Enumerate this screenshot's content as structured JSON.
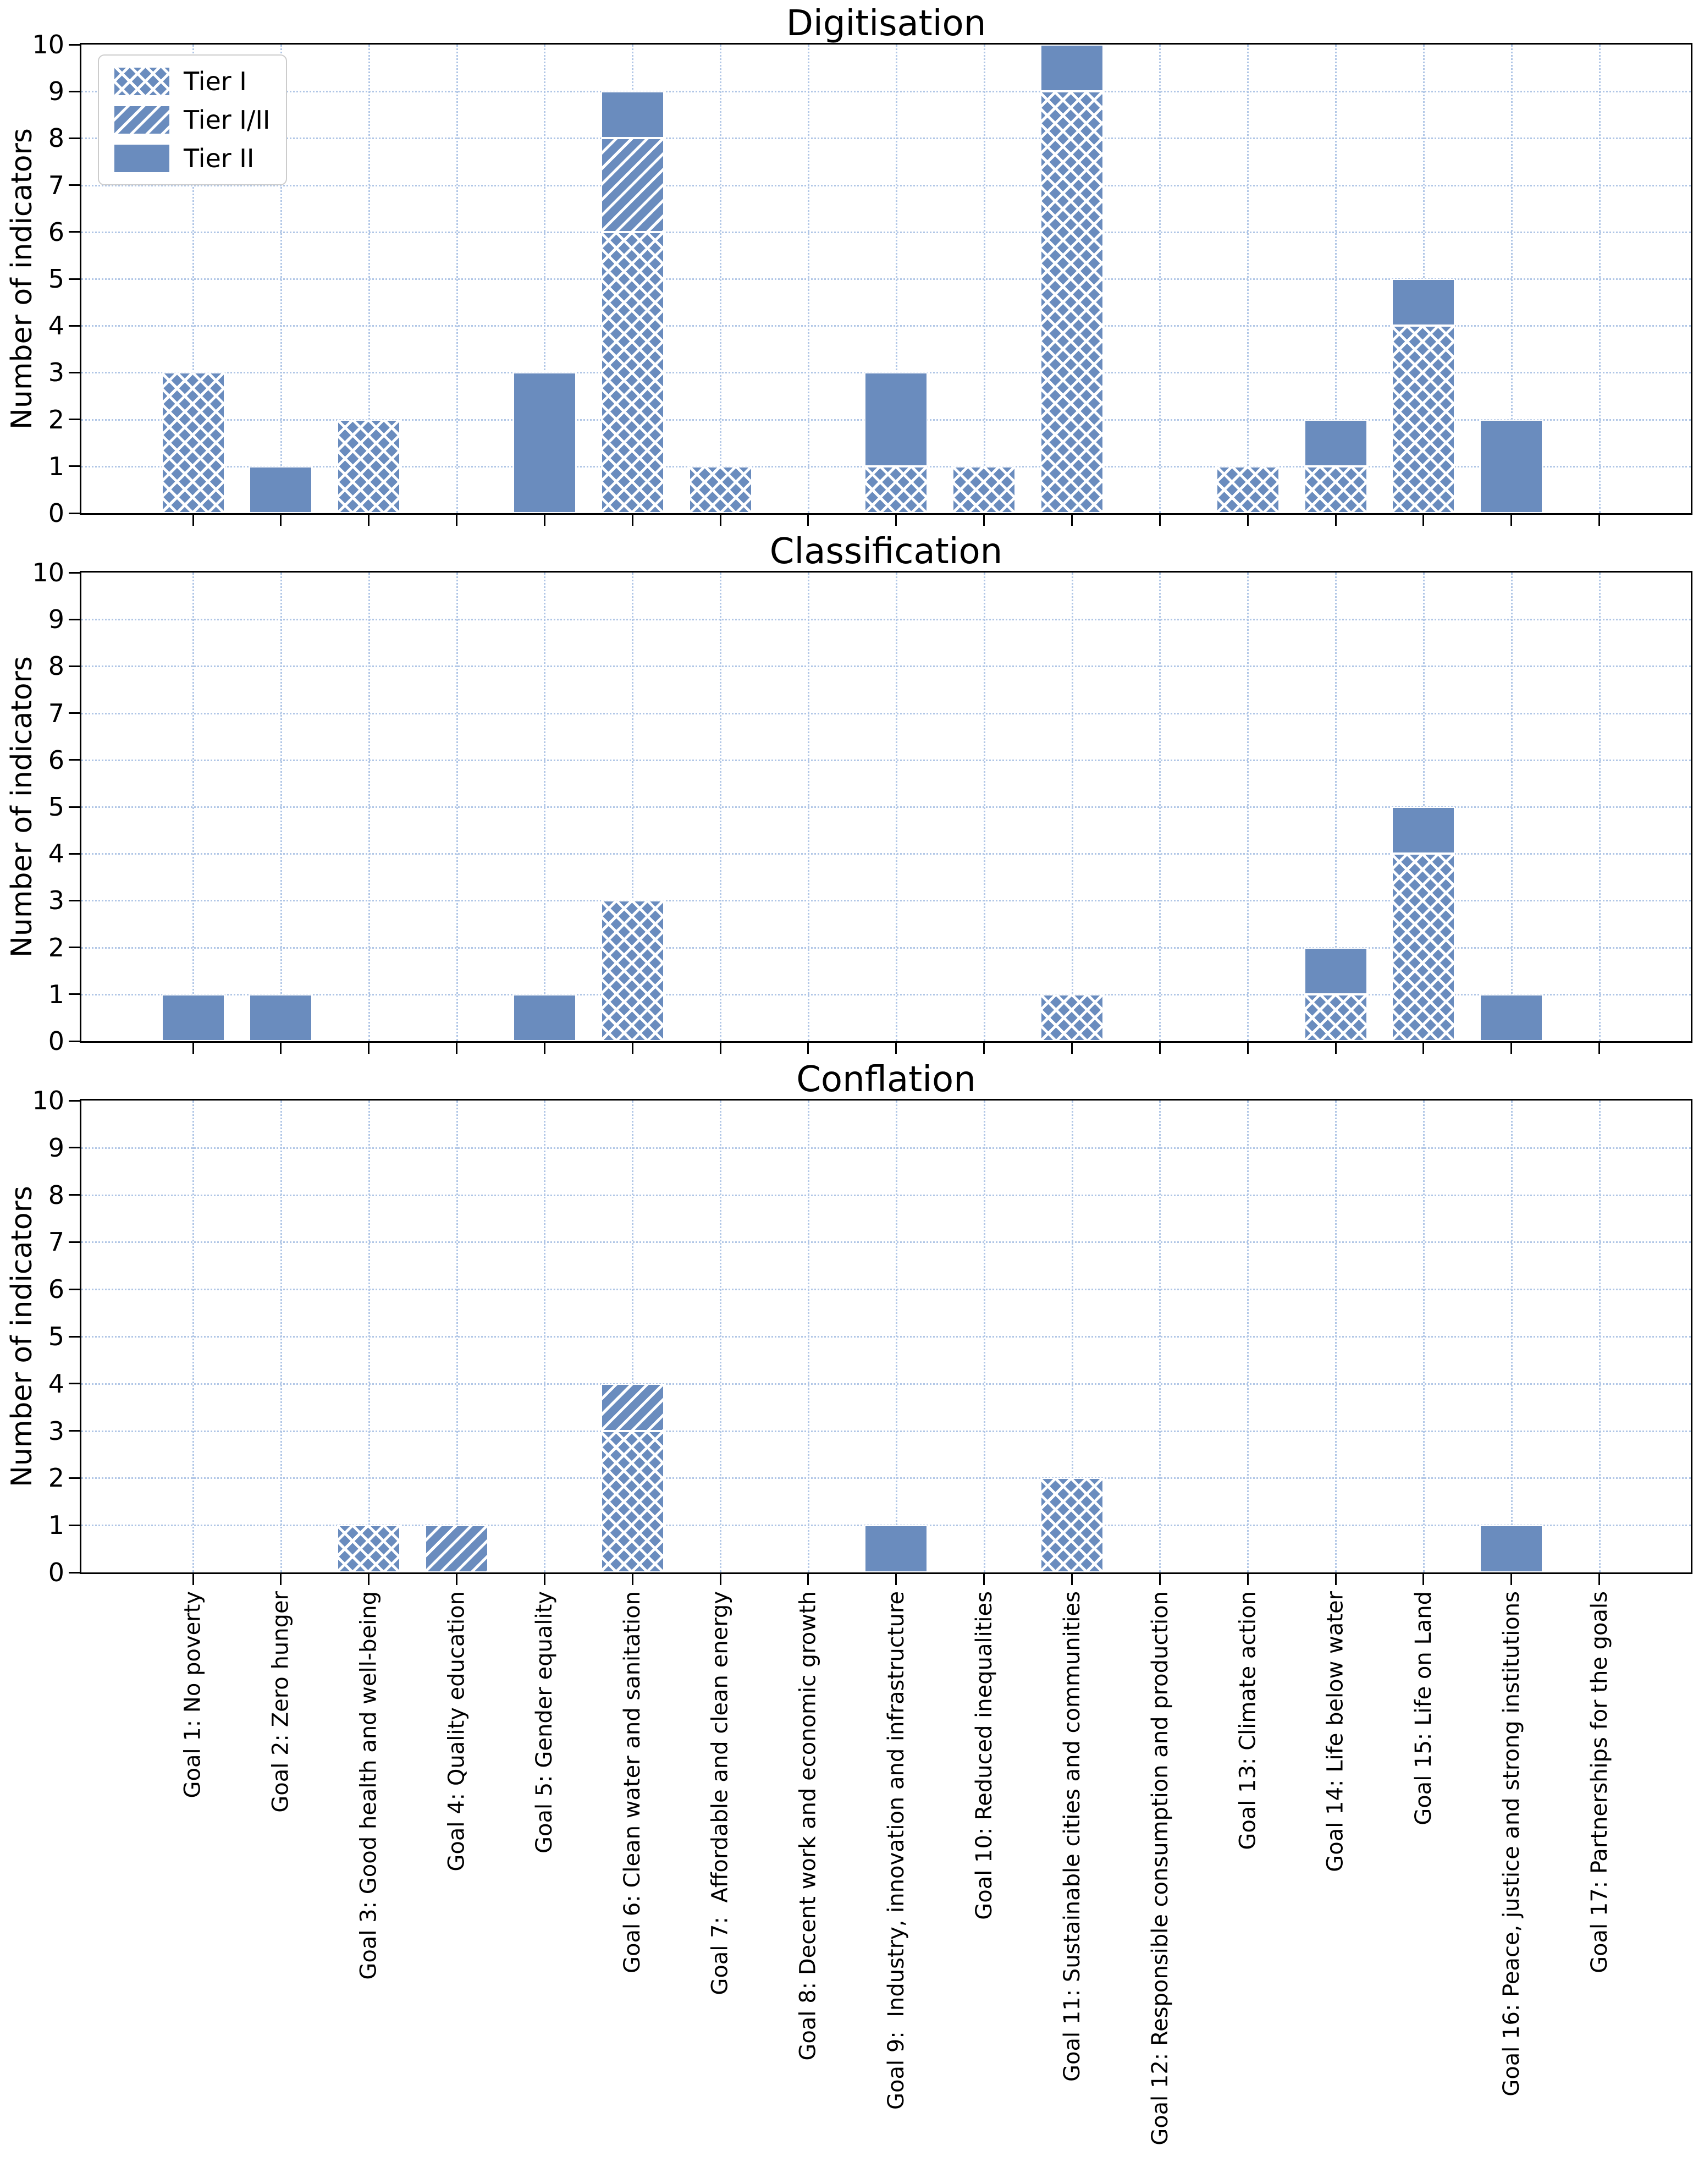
{
  "ylabel": "Number of indicators",
  "y_ticks": [
    0,
    1,
    2,
    3,
    4,
    5,
    6,
    7,
    8,
    9,
    10
  ],
  "colors": {
    "bar": "#6a8cbe",
    "hatch_lines": "#ffffff",
    "grid": "#b0c6e6",
    "spine": "#000000",
    "text": "#000000",
    "legend_border": "#cccccc",
    "legend_background": "#ffffff"
  },
  "legend": {
    "position": "upper-left",
    "items": [
      {
        "label": "Tier I",
        "hatch": "cross"
      },
      {
        "label": "Tier I/II",
        "hatch": "diag"
      },
      {
        "label": "Tier II",
        "hatch": "solid"
      }
    ]
  },
  "categories": [
    "Goal 1: No poverty",
    "Goal 2: Zero hunger",
    "Goal 3: Good health and well-being",
    "Goal 4: Quality education",
    "Goal 5: Gender equality",
    "Goal 6: Clean water and sanitation",
    "Goal 7:  Affordable and clean energy",
    "Goal 8: Decent work and economic growth",
    "Goal 9:  Industry, innovation and infrastructure",
    "Goal 10: Reduced inequalities",
    "Goal 11: Sustainable cities and communities",
    "Goal 12: Responsible consumption and production",
    "Goal 13: Climate action",
    "Goal 14: Life below water",
    "Goal 15: Life on Land",
    "Goal 16: Peace, justice and strong institutions",
    "Goal 17: Partnerships for the goals"
  ],
  "chart_data": [
    {
      "type": "bar",
      "stacked": true,
      "title": "Digitisation",
      "xlabel": "",
      "ylabel": "Number of indicators",
      "ylim": [
        0,
        10
      ],
      "grid": true,
      "legend_visible": true,
      "series": [
        {
          "name": "Tier I",
          "hatch": "cross",
          "values": [
            3,
            0,
            2,
            0,
            0,
            6,
            1,
            0,
            1,
            1,
            9,
            0,
            1,
            1,
            4,
            0,
            0
          ]
        },
        {
          "name": "Tier I/II",
          "hatch": "diag",
          "values": [
            0,
            0,
            0,
            0,
            0,
            2,
            0,
            0,
            0,
            0,
            0,
            0,
            0,
            0,
            0,
            0,
            0
          ]
        },
        {
          "name": "Tier II",
          "hatch": "solid",
          "values": [
            0,
            1,
            0,
            0,
            3,
            1,
            0,
            0,
            2,
            0,
            1,
            0,
            0,
            1,
            1,
            2,
            0
          ]
        }
      ]
    },
    {
      "type": "bar",
      "stacked": true,
      "title": "Classification",
      "xlabel": "",
      "ylabel": "Number of indicators",
      "ylim": [
        0,
        10
      ],
      "grid": true,
      "legend_visible": false,
      "series": [
        {
          "name": "Tier I",
          "hatch": "cross",
          "values": [
            0,
            0,
            0,
            0,
            0,
            3,
            0,
            0,
            0,
            0,
            1,
            0,
            0,
            1,
            4,
            0,
            0
          ]
        },
        {
          "name": "Tier I/II",
          "hatch": "diag",
          "values": [
            0,
            0,
            0,
            0,
            0,
            0,
            0,
            0,
            0,
            0,
            0,
            0,
            0,
            0,
            0,
            0,
            0
          ]
        },
        {
          "name": "Tier II",
          "hatch": "solid",
          "values": [
            1,
            1,
            0,
            0,
            1,
            0,
            0,
            0,
            0,
            0,
            0,
            0,
            0,
            1,
            1,
            1,
            0
          ]
        }
      ]
    },
    {
      "type": "bar",
      "stacked": true,
      "title": "Conflation",
      "xlabel": "",
      "ylabel": "Number of indicators",
      "ylim": [
        0,
        10
      ],
      "grid": true,
      "legend_visible": false,
      "series": [
        {
          "name": "Tier I",
          "hatch": "cross",
          "values": [
            0,
            0,
            1,
            0,
            0,
            3,
            0,
            0,
            0,
            0,
            2,
            0,
            0,
            0,
            0,
            0,
            0
          ]
        },
        {
          "name": "Tier I/II",
          "hatch": "diag",
          "values": [
            0,
            0,
            0,
            1,
            0,
            1,
            0,
            0,
            0,
            0,
            0,
            0,
            0,
            0,
            0,
            0,
            0
          ]
        },
        {
          "name": "Tier II",
          "hatch": "solid",
          "values": [
            0,
            0,
            0,
            0,
            0,
            0,
            0,
            0,
            1,
            0,
            0,
            0,
            0,
            0,
            0,
            1,
            0
          ]
        }
      ]
    }
  ]
}
